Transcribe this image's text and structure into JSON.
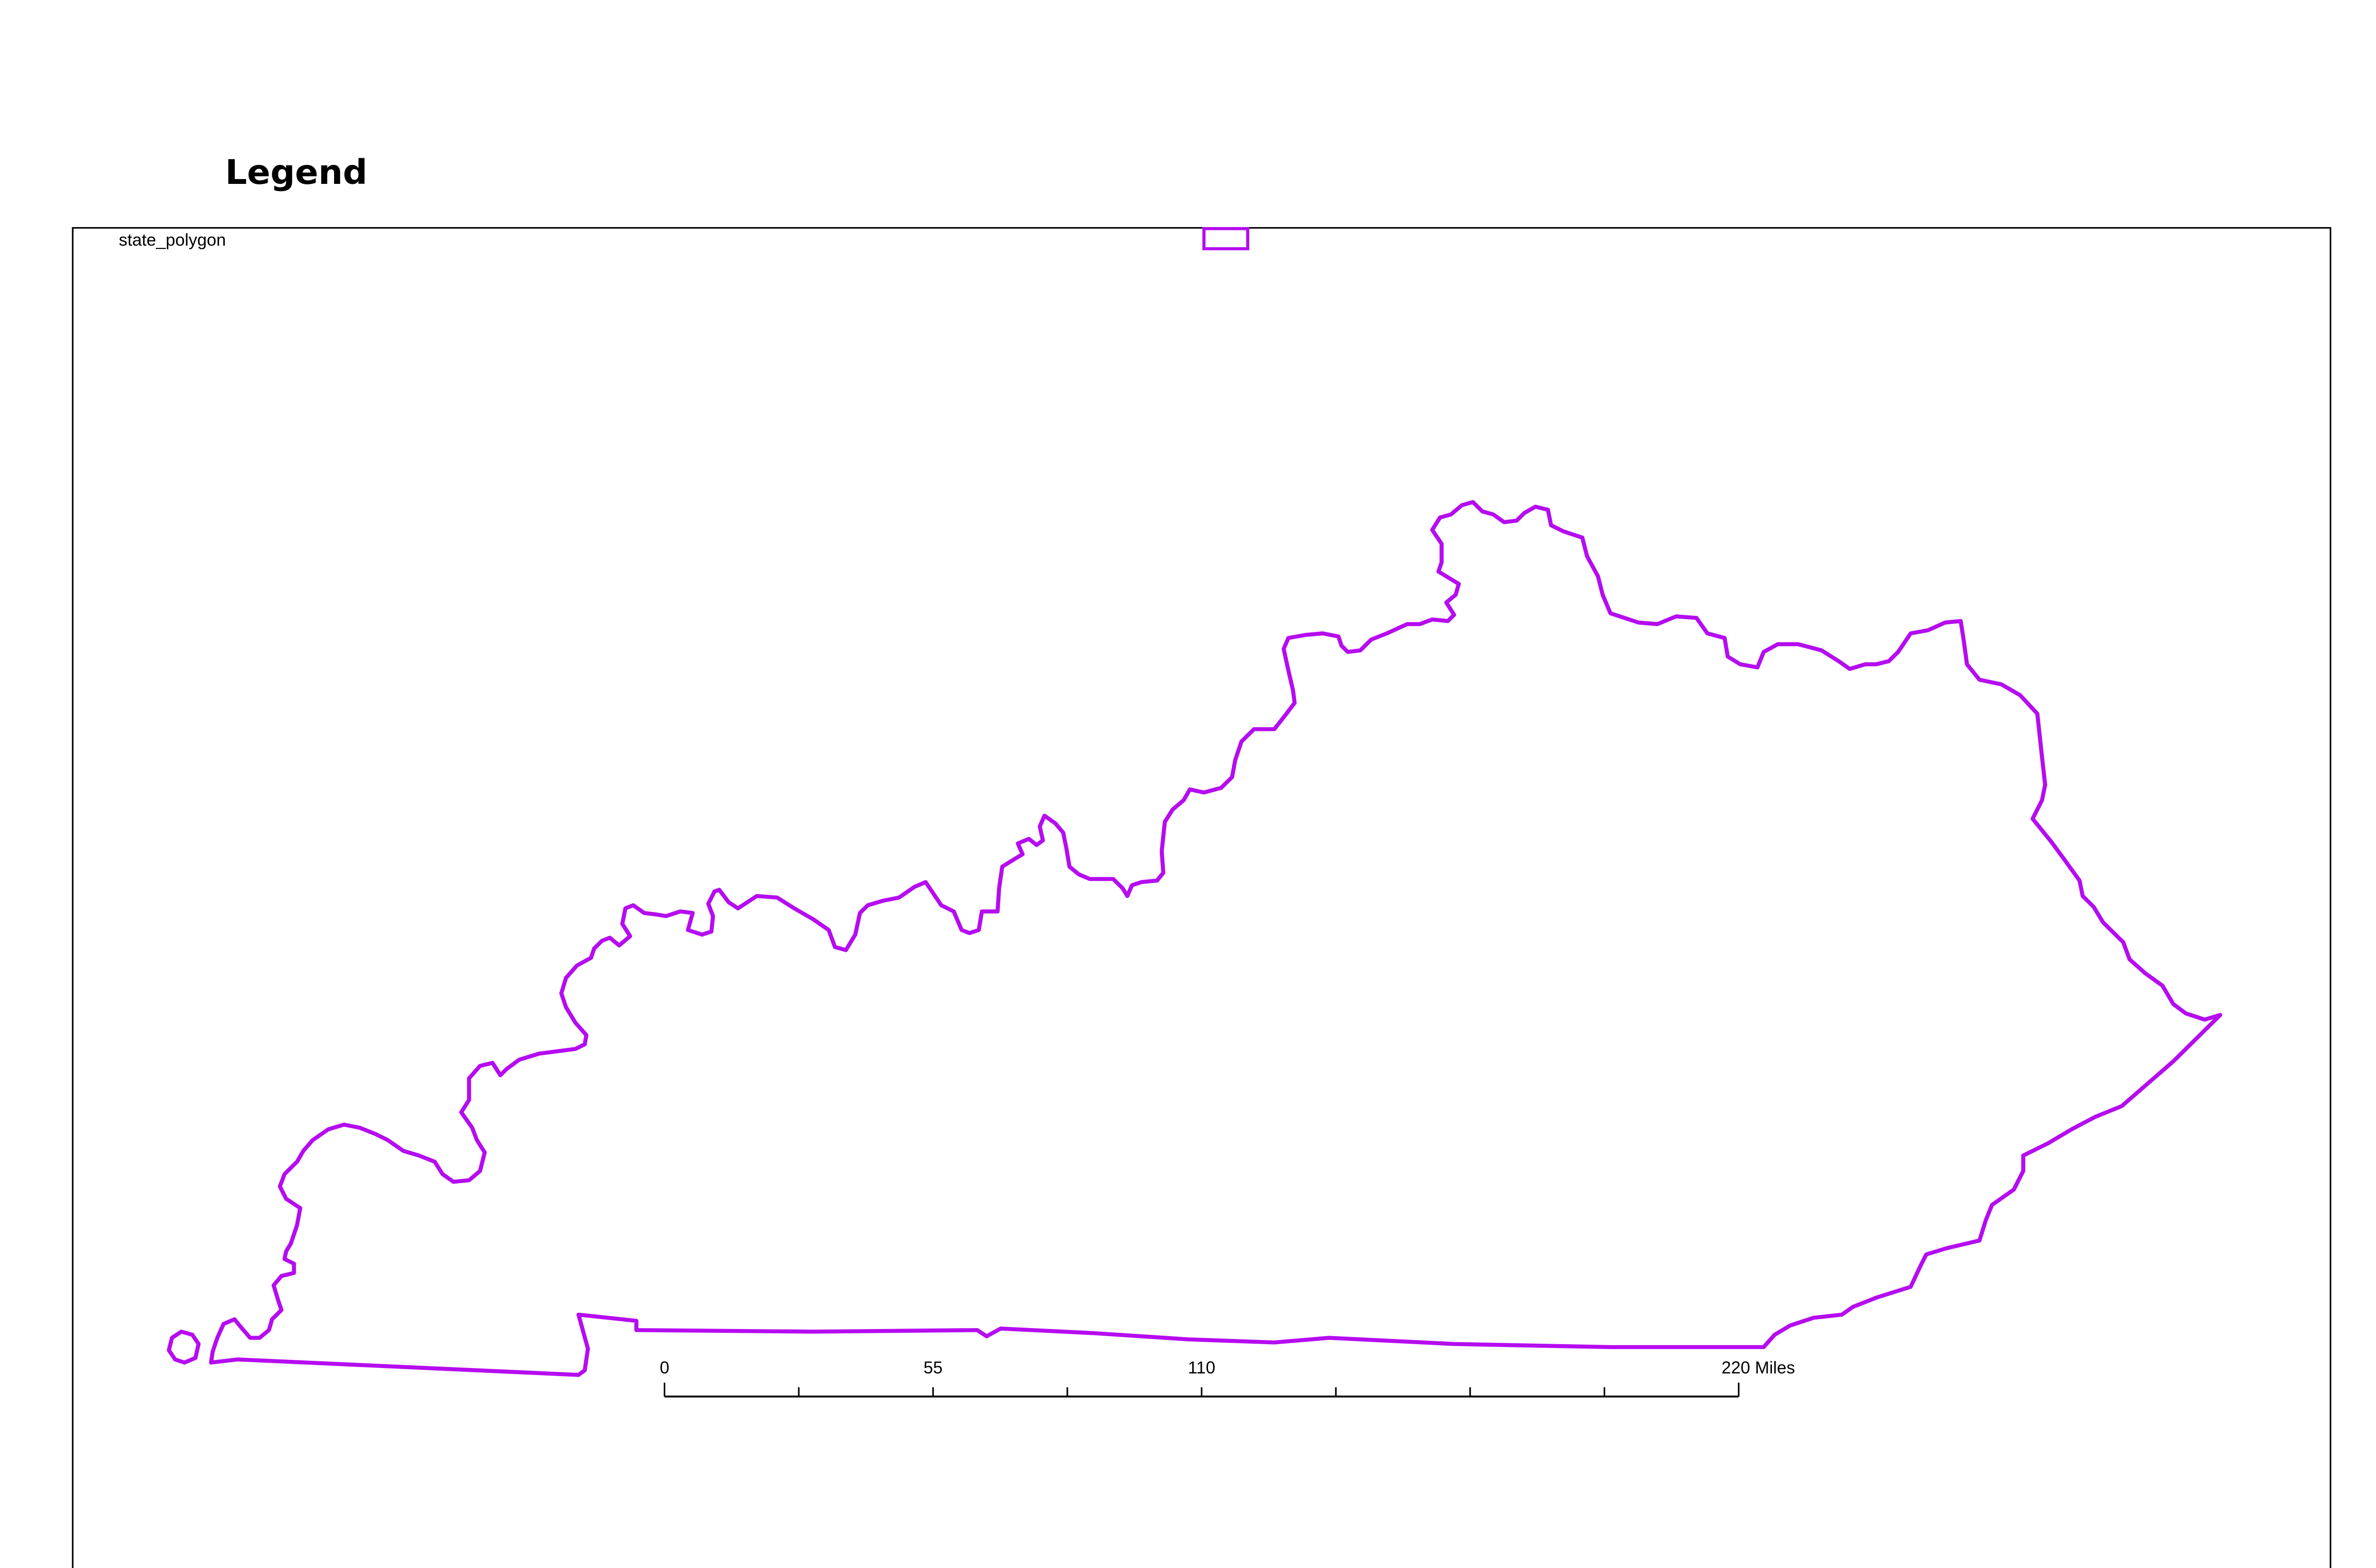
{
  "legend": {
    "title": "Legend",
    "layer_name": "state_polygon"
  },
  "colors": {
    "outline": "#b50cf0",
    "frame": "#000000",
    "text": "#000000",
    "background": "#ffffff"
  },
  "scale_bar": {
    "labels": [
      "0",
      "55",
      "110",
      "220 Miles"
    ],
    "values": [
      0,
      55,
      110,
      220
    ],
    "unit": "Miles",
    "max": 220
  }
}
